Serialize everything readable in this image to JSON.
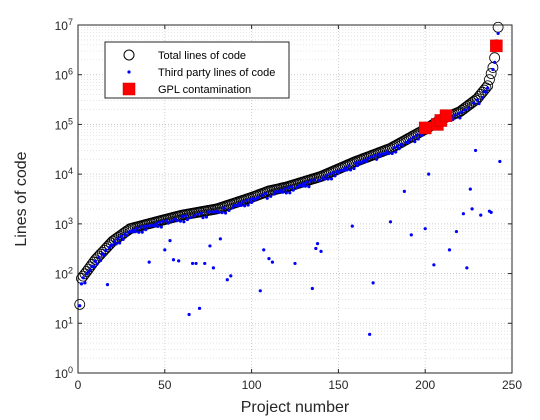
{
  "chart_data": {
    "type": "scatter",
    "title": "",
    "xlabel": "Project number",
    "ylabel": "Lines of code",
    "xlim": [
      0,
      250
    ],
    "ylim": [
      1,
      10000000
    ],
    "yscale": "log",
    "xticks": [
      0,
      50,
      100,
      150,
      200,
      250
    ],
    "yticks": [
      1,
      10,
      100,
      1000,
      10000,
      100000,
      1000000,
      10000000
    ],
    "ytick_labels": [
      {
        "base": "10",
        "exp": "0"
      },
      {
        "base": "10",
        "exp": "1"
      },
      {
        "base": "10",
        "exp": "2"
      },
      {
        "base": "10",
        "exp": "3"
      },
      {
        "base": "10",
        "exp": "4"
      },
      {
        "base": "10",
        "exp": "5"
      },
      {
        "base": "10",
        "exp": "6"
      },
      {
        "base": "10",
        "exp": "7"
      }
    ],
    "grid": true,
    "minor_grid": true,
    "legend_position": "top-left",
    "total_anchors": [
      [
        1,
        24
      ],
      [
        2,
        80
      ],
      [
        5,
        110
      ],
      [
        10,
        190
      ],
      [
        20,
        450
      ],
      [
        30,
        800
      ],
      [
        45,
        1100
      ],
      [
        60,
        1500
      ],
      [
        80,
        2000
      ],
      [
        100,
        3400
      ],
      [
        110,
        4600
      ],
      [
        120,
        5500
      ],
      [
        140,
        9000
      ],
      [
        160,
        18000
      ],
      [
        180,
        33000
      ],
      [
        200,
        80000
      ],
      [
        210,
        130000
      ],
      [
        220,
        180000
      ],
      [
        230,
        330000
      ],
      [
        236,
        600000
      ],
      [
        239,
        1400000
      ],
      [
        240,
        2200000
      ],
      [
        241,
        4000000
      ],
      [
        242,
        9000000
      ]
    ],
    "third_party_scatter": [
      [
        4,
        65
      ],
      [
        17,
        60
      ],
      [
        41,
        170
      ],
      [
        50,
        300
      ],
      [
        53,
        460
      ],
      [
        55,
        190
      ],
      [
        58,
        180
      ],
      [
        64,
        15
      ],
      [
        66,
        160
      ],
      [
        68,
        160
      ],
      [
        70,
        20
      ],
      [
        73,
        160
      ],
      [
        76,
        360
      ],
      [
        78,
        130
      ],
      [
        82,
        500
      ],
      [
        86,
        75
      ],
      [
        88,
        90
      ],
      [
        105,
        45
      ],
      [
        107,
        300
      ],
      [
        110,
        200
      ],
      [
        112,
        170
      ],
      [
        125,
        160
      ],
      [
        135,
        50
      ],
      [
        137,
        320
      ],
      [
        138,
        400
      ],
      [
        140,
        280
      ],
      [
        158,
        900
      ],
      [
        168,
        6
      ],
      [
        170,
        65
      ],
      [
        180,
        1100
      ],
      [
        188,
        4500
      ],
      [
        192,
        600
      ],
      [
        200,
        800
      ],
      [
        202,
        10000
      ],
      [
        205,
        150
      ],
      [
        214,
        300
      ],
      [
        218,
        700
      ],
      [
        222,
        1600
      ],
      [
        224,
        130
      ],
      [
        226,
        5000
      ],
      [
        227,
        2000
      ],
      [
        229,
        30000
      ],
      [
        232,
        1500
      ],
      [
        237,
        1800
      ],
      [
        238,
        1700
      ],
      [
        243,
        18000
      ]
    ],
    "gpl_contamination": [
      [
        200,
        85000
      ],
      [
        207,
        100000
      ],
      [
        209,
        120000
      ],
      [
        212,
        150000
      ],
      [
        241,
        3800000
      ]
    ],
    "series": [
      {
        "name": "Total lines of code",
        "marker": "circle-open",
        "color": "#000000"
      },
      {
        "name": "Third party lines of code",
        "marker": "dot",
        "color": "#0000ff"
      },
      {
        "name": "GPL contamination",
        "marker": "square",
        "color": "#ff0000"
      }
    ]
  }
}
